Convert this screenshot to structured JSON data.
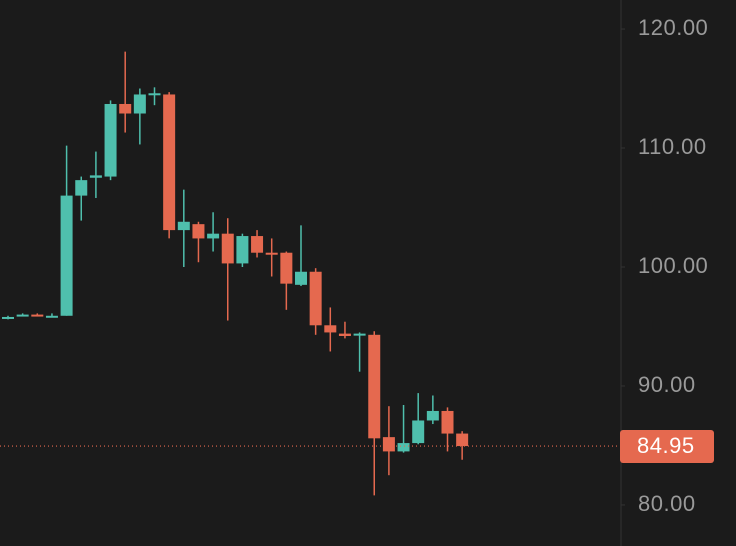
{
  "chart_data": {
    "type": "candlestick",
    "open": [
      95.7,
      96.0,
      96.0,
      95.9,
      95.9,
      106.0,
      107.5,
      107.6,
      113.7,
      112.9,
      114.5,
      114.5,
      103.1,
      103.6,
      102.4,
      102.8,
      100.3,
      102.6,
      101.2,
      101.2,
      98.5,
      99.6,
      95.1,
      94.4,
      94.3,
      94.3,
      85.7,
      84.5,
      85.2,
      87.1,
      87.9,
      86.0
    ],
    "high": [
      95.9,
      96.1,
      96.1,
      96.1,
      110.2,
      107.6,
      109.7,
      114.0,
      118.1,
      115.0,
      115.1,
      114.7,
      106.5,
      103.8,
      104.6,
      104.1,
      102.8,
      103.1,
      102.4,
      101.3,
      103.5,
      99.9,
      96.6,
      95.4,
      94.5,
      94.6,
      88.3,
      88.4,
      89.4,
      89.2,
      88.2,
      86.2
    ],
    "low": [
      95.6,
      95.9,
      95.9,
      95.8,
      95.9,
      103.9,
      105.8,
      107.3,
      111.3,
      110.3,
      113.6,
      102.4,
      100.0,
      100.4,
      101.3,
      95.5,
      100.0,
      100.8,
      99.2,
      96.4,
      98.4,
      94.3,
      92.9,
      94.0,
      91.2,
      80.8,
      82.5,
      84.4,
      85.1,
      86.8,
      84.5,
      83.8
    ],
    "close": [
      95.8,
      96.0,
      95.9,
      95.9,
      106.0,
      107.3,
      107.7,
      113.7,
      112.9,
      114.5,
      114.6,
      103.1,
      103.8,
      102.4,
      102.8,
      100.3,
      102.6,
      101.2,
      101.1,
      98.6,
      99.6,
      95.1,
      94.5,
      94.2,
      94.4,
      85.6,
      84.5,
      85.2,
      87.1,
      87.9,
      86.0,
      84.95
    ],
    "up_color": "#4fbfad",
    "down_color": "#e5694f",
    "last_price": 84.95,
    "ylim": [
      76.55,
      122.44
    ],
    "yticks": [
      {
        "value": 80,
        "label": "80.00"
      },
      {
        "value": 90,
        "label": "90.00"
      },
      {
        "value": 100,
        "label": "100.00"
      },
      {
        "value": 110,
        "label": "110.00"
      },
      {
        "value": 120,
        "label": "120.00"
      }
    ]
  }
}
